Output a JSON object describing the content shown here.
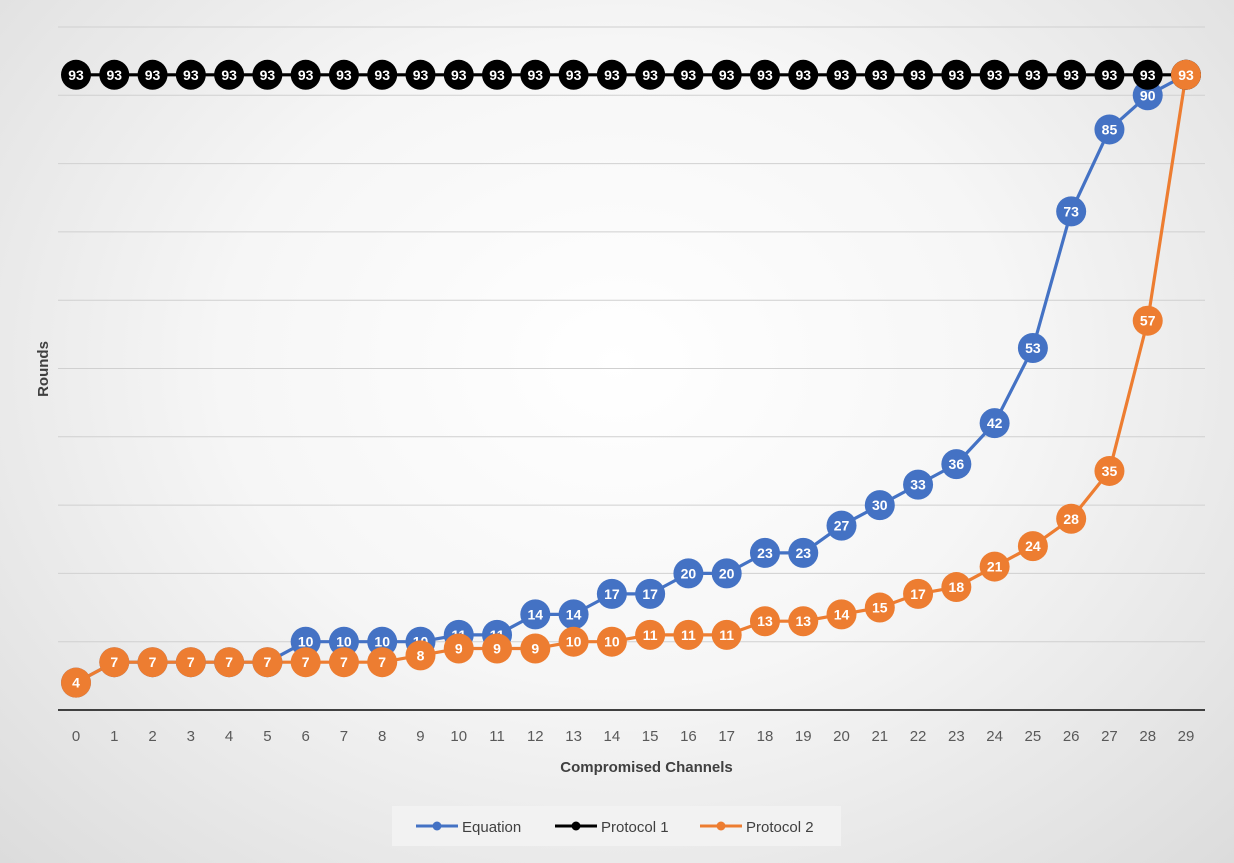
{
  "chart_data": {
    "type": "line",
    "title": "",
    "xlabel": "Compromised Channels",
    "ylabel": "Rounds",
    "ylim": [
      0,
      100
    ],
    "ygrid_step": 10,
    "grid": "horizontal",
    "y_tick_labels_shown": false,
    "legend_position": "bottom",
    "categories": [
      "0",
      "1",
      "2",
      "3",
      "4",
      "5",
      "6",
      "7",
      "8",
      "9",
      "10",
      "11",
      "12",
      "13",
      "14",
      "15",
      "16",
      "17",
      "18",
      "19",
      "20",
      "21",
      "22",
      "23",
      "24",
      "25",
      "26",
      "27",
      "28",
      "29"
    ],
    "series": [
      {
        "name": "Equation",
        "color": "#4472C4",
        "values": [
          4,
          7,
          7,
          7,
          7,
          7,
          10,
          10,
          10,
          10,
          11,
          11,
          14,
          14,
          17,
          17,
          20,
          20,
          23,
          23,
          27,
          30,
          33,
          36,
          42,
          53,
          73,
          85,
          90,
          93
        ]
      },
      {
        "name": "Protocol 1",
        "color": "#000000",
        "values": [
          93,
          93,
          93,
          93,
          93,
          93,
          93,
          93,
          93,
          93,
          93,
          93,
          93,
          93,
          93,
          93,
          93,
          93,
          93,
          93,
          93,
          93,
          93,
          93,
          93,
          93,
          93,
          93,
          93,
          93
        ]
      },
      {
        "name": "Protocol 2",
        "color": "#ED7D31",
        "values": [
          4,
          7,
          7,
          7,
          7,
          7,
          7,
          7,
          7,
          8,
          9,
          9,
          9,
          10,
          10,
          11,
          11,
          11,
          13,
          13,
          14,
          15,
          17,
          18,
          21,
          24,
          28,
          35,
          57,
          93
        ]
      }
    ]
  }
}
